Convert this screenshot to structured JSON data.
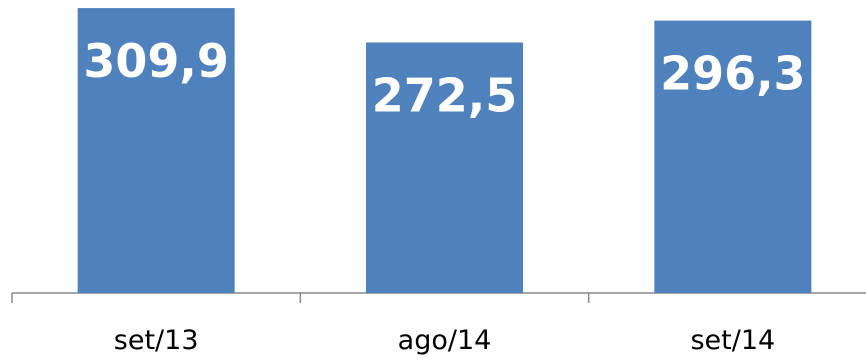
{
  "chart_data": {
    "type": "bar",
    "categories": [
      "set/13",
      "ago/14",
      "set/14"
    ],
    "values": [
      309.9,
      272.5,
      296.3
    ],
    "value_labels": [
      "309,9",
      "272,5",
      "296,3"
    ],
    "title": "",
    "xlabel": "",
    "ylabel": "",
    "ylim": [
      0,
      310
    ],
    "grid": false,
    "legend": "none",
    "bar_color": "#4F81BD",
    "label_color": "#ffffff",
    "axis_color": "#888888"
  }
}
